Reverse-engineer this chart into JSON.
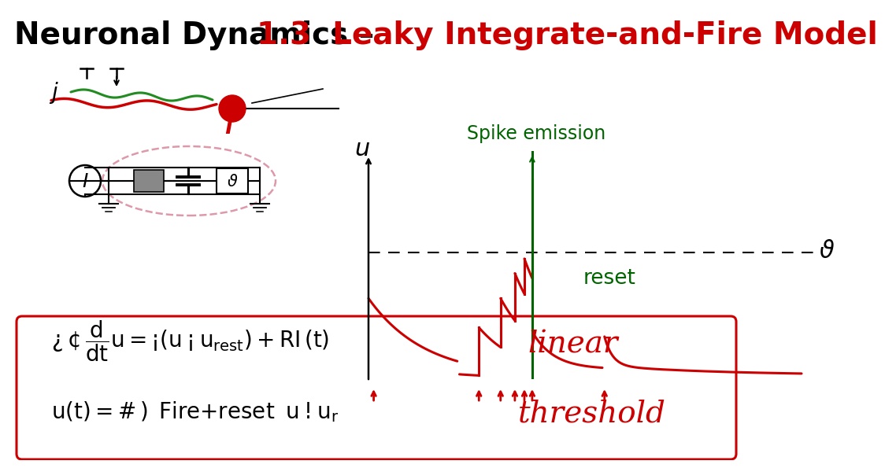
{
  "bg_color": "#ffffff",
  "red_color": "#cc0000",
  "green_color": "#006400",
  "black_color": "#000000",
  "darkgreen_color": "#228B22",
  "title_black": "Neuronal Dynamics – ",
  "title_red": "1.3  Leaky Integrate-and-Fire Model",
  "spike_emission_label": "Spike emission",
  "reset_label": "reset",
  "linear_label": "linear",
  "threshold_word": "threshold",
  "u_label": "u"
}
